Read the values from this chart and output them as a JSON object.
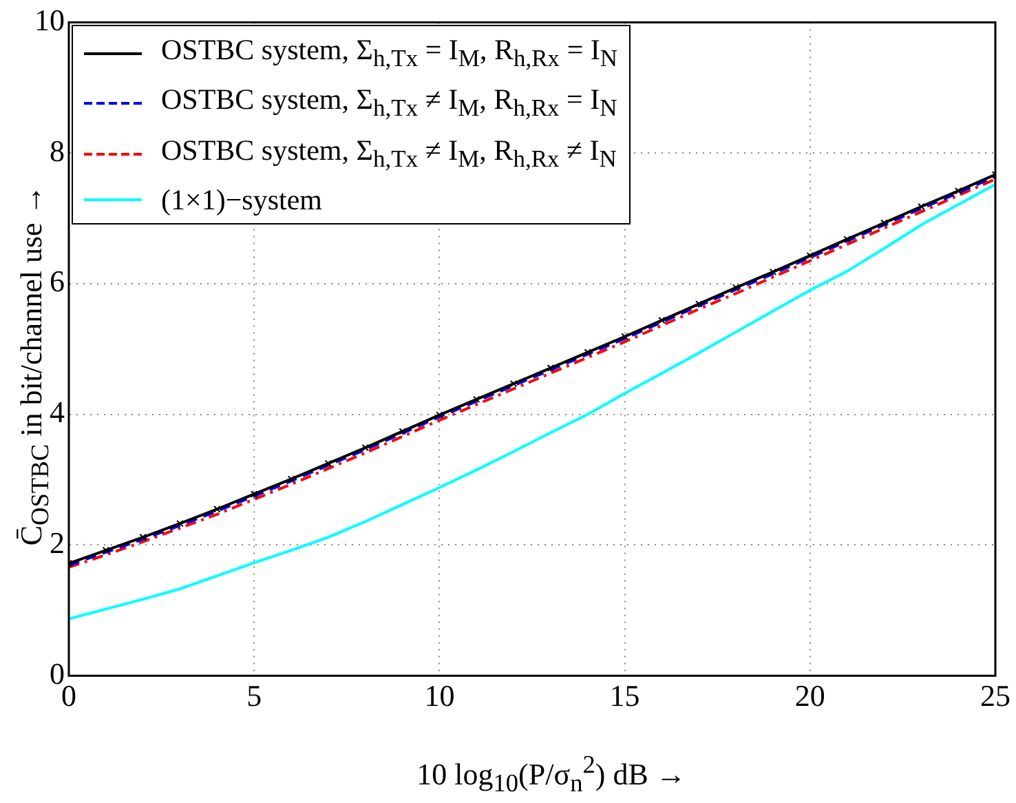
{
  "chart_data": {
    "type": "line",
    "xlabel": "10 log$_{10}$(P/σ$_{n}$$^{2}$)  dB →",
    "ylabel": "C̄$_{OSTBC}$ in bit/channel use →",
    "x": [
      0,
      1,
      2,
      3,
      4,
      5,
      6,
      7,
      8,
      9,
      10,
      11,
      12,
      13,
      14,
      15,
      16,
      17,
      18,
      19,
      20,
      21,
      22,
      23,
      24,
      25
    ],
    "series": [
      {
        "name": "OSTBC system, Σ$_{h,Tx}$ = I$_{M}$,  R$_{h,Rx}$ = I$_{N}$",
        "color": "#000000",
        "line_style": "solid",
        "marker": "cross",
        "values": [
          1.72,
          1.92,
          2.12,
          2.33,
          2.55,
          2.78,
          3.01,
          3.25,
          3.49,
          3.74,
          3.99,
          4.23,
          4.47,
          4.71,
          4.95,
          5.19,
          5.44,
          5.69,
          5.94,
          6.18,
          6.43,
          6.68,
          6.93,
          7.18,
          7.42,
          7.67
        ]
      },
      {
        "name": "OSTBC system, Σ$_{h,Tx}$ ≠ I$_{M}$,  R$_{h,Rx}$ = I$_{N}$",
        "color": "#0000ff",
        "line_style": "dashed",
        "values": [
          1.69,
          1.89,
          2.09,
          2.3,
          2.52,
          2.75,
          2.98,
          3.22,
          3.46,
          3.71,
          3.96,
          4.2,
          4.44,
          4.68,
          4.92,
          5.16,
          5.41,
          5.66,
          5.91,
          6.15,
          6.4,
          6.65,
          6.9,
          7.15,
          7.39,
          7.64
        ]
      },
      {
        "name": "OSTBC system, Σ$_{h,Tx}$ ≠ I$_{M}$,  R$_{h,Rx}$ ≠ I$_{N}$",
        "color": "#ff0000",
        "line_style": "dashdot",
        "values": [
          1.66,
          1.85,
          2.05,
          2.26,
          2.47,
          2.7,
          2.93,
          3.17,
          3.41,
          3.66,
          3.91,
          4.15,
          4.39,
          4.63,
          4.87,
          5.11,
          5.36,
          5.61,
          5.85,
          6.1,
          6.35,
          6.6,
          6.85,
          7.1,
          7.35,
          7.6
        ]
      },
      {
        "name": "(1×1)−system",
        "color": "#00ffff",
        "line_style": "solid",
        "values": [
          0.87,
          1.02,
          1.17,
          1.33,
          1.53,
          1.73,
          1.92,
          2.12,
          2.36,
          2.62,
          2.88,
          3.15,
          3.43,
          3.72,
          4.0,
          4.32,
          4.63,
          4.94,
          5.26,
          5.58,
          5.9,
          6.19,
          6.54,
          6.9,
          7.21,
          7.52
        ]
      }
    ],
    "xlim": [
      0,
      25
    ],
    "xticks": [
      0,
      5,
      10,
      15,
      20,
      25
    ],
    "ylim": [
      0,
      10
    ],
    "yticks": [
      0,
      2,
      4,
      6,
      8,
      10
    ],
    "grid": true,
    "legend": "top left"
  }
}
